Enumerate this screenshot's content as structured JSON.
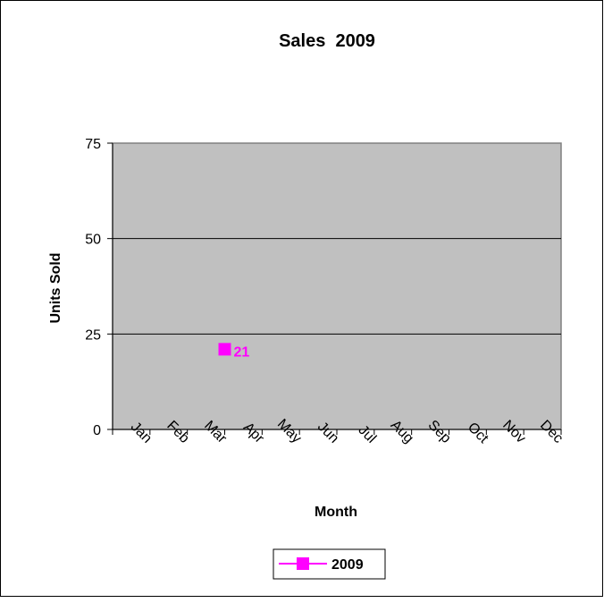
{
  "chart_data": {
    "type": "line",
    "title": "Sales  2009",
    "xlabel": "Month",
    "ylabel": "Units Sold",
    "categories": [
      "Jan",
      "Feb",
      "Mar",
      "Apr",
      "May",
      "Jun",
      "Jul",
      "Aug",
      "Sep",
      "Oct",
      "Nov",
      "Dec"
    ],
    "series": [
      {
        "name": "2009",
        "color": "#ff00ff",
        "marker": "square",
        "values": [
          null,
          null,
          null,
          21,
          null,
          null,
          null,
          null,
          null,
          null,
          null,
          null
        ],
        "data_labels": true
      }
    ],
    "ylim": [
      0,
      75
    ],
    "yticks": [
      0,
      25,
      50,
      75
    ],
    "grid": true,
    "plot_background": "#c0c0c0",
    "legend_position": "bottom"
  }
}
